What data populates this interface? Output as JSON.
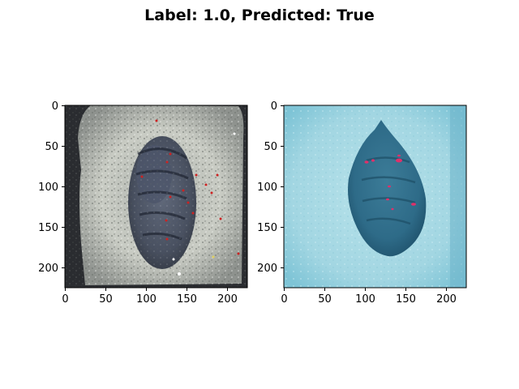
{
  "figure": {
    "title": "Label: 1.0, Predicted: True"
  },
  "panels": [
    {
      "name": "left-image",
      "image_description_tag": "fossil-on-rock-photo",
      "xticks": [
        0,
        50,
        100,
        150,
        200
      ],
      "yticks": [
        0,
        50,
        100,
        150,
        200
      ],
      "xlim": [
        0,
        224
      ],
      "ylim": [
        224,
        0
      ],
      "colors": {
        "background": "#2a2c30",
        "rock": "#c9ccc4",
        "fossil": "#3e4658",
        "marker": "#cc2222"
      }
    },
    {
      "name": "right-image",
      "image_description_tag": "fossil-tinted-cyan",
      "xticks": [
        0,
        50,
        100,
        150,
        200
      ],
      "yticks": [
        0,
        50,
        100,
        150,
        200
      ],
      "xlim": [
        0,
        224
      ],
      "ylim": [
        224,
        0
      ],
      "colors": {
        "background": "#8fd0de",
        "rock": "#a8dbe6",
        "fossil": "#2e6b88",
        "marker": "#e0306a"
      }
    }
  ]
}
